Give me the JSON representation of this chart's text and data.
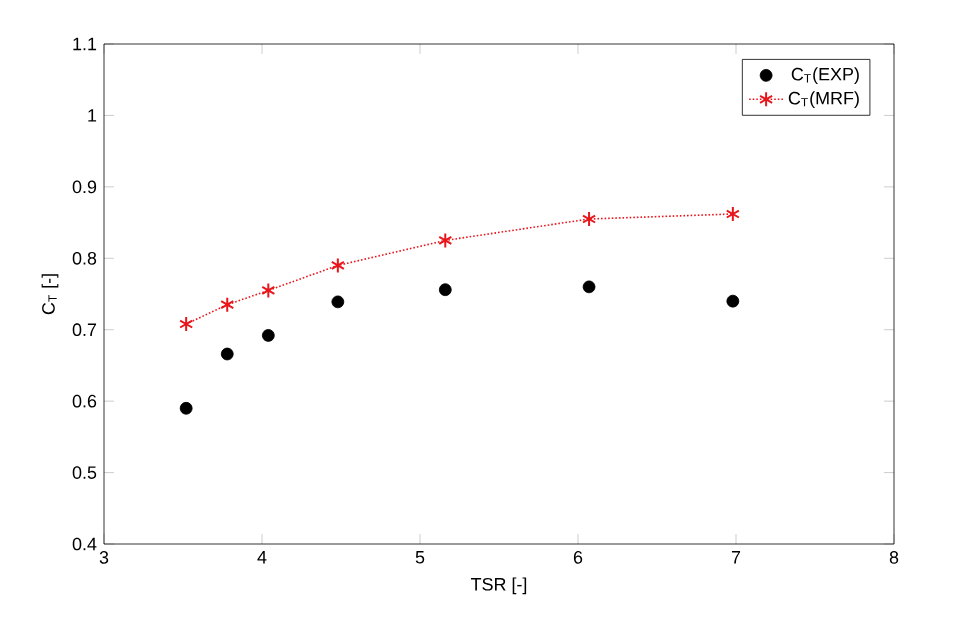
{
  "chart_data": {
    "type": "scatter",
    "xlabel": "TSR [-]",
    "ylabel": "C$_{T}$ [-]",
    "xlim": [
      3,
      8
    ],
    "ylim": [
      0.4,
      1.1
    ],
    "xticks": [
      3,
      4,
      5,
      6,
      7,
      8
    ],
    "yticks": [
      0.4,
      0.5,
      0.6,
      0.7,
      0.8,
      0.9,
      1,
      1.1
    ],
    "legend": "top right",
    "grid": false,
    "series": [
      {
        "name": "C$_{T}$(EXP)",
        "marker": "circle",
        "color": "#000000",
        "x": [
          3.52,
          3.78,
          4.04,
          4.48,
          5.16,
          6.07,
          6.98
        ],
        "values": [
          0.59,
          0.666,
          0.692,
          0.739,
          0.756,
          0.76,
          0.74
        ]
      },
      {
        "name": "C$_{T}$(MRF)",
        "type": "line",
        "marker": "cross",
        "line_style": "dotted",
        "color": "#e8161b",
        "x": [
          3.52,
          3.78,
          4.04,
          4.48,
          5.16,
          6.07,
          6.98
        ],
        "values": [
          0.708,
          0.735,
          0.755,
          0.79,
          0.825,
          0.855,
          0.862
        ]
      }
    ]
  }
}
